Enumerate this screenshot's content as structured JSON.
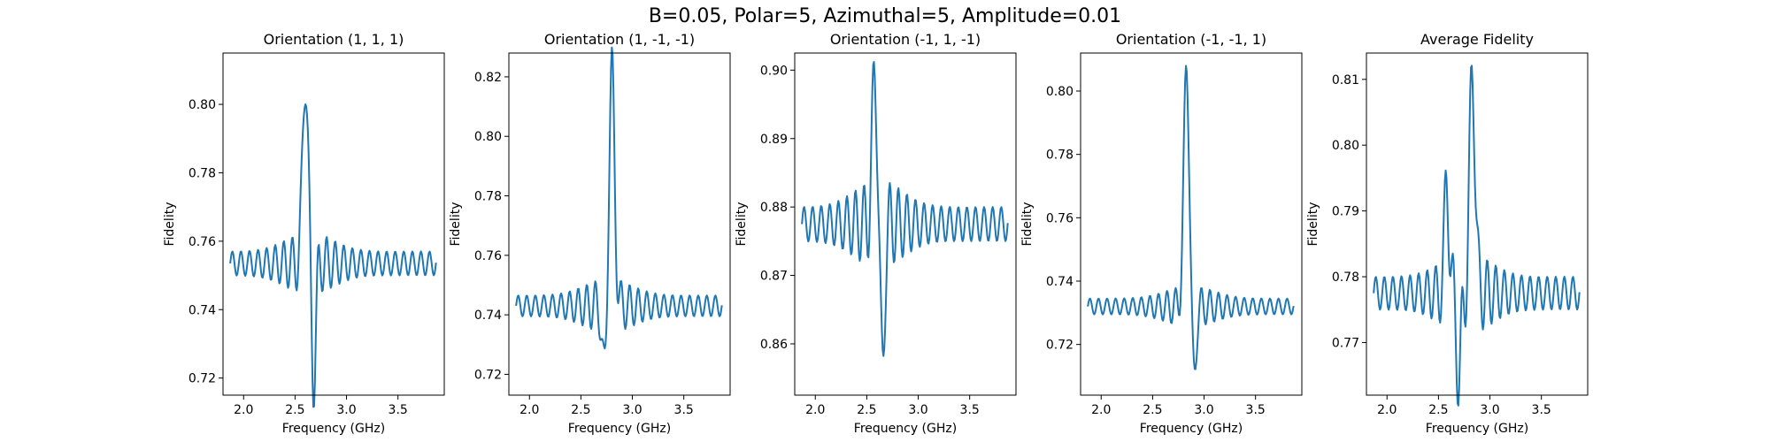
{
  "figure": {
    "suptitle": "B=0.05, Polar=5, Azimuthal=5, Amplitude=0.01",
    "line_color": "#1f77b4"
  },
  "chart_data": [
    {
      "type": "line",
      "title": "Orientation (1, 1, 1)",
      "xlabel": "Frequency (GHz)",
      "ylabel": "Fidelity",
      "xlim": [
        1.8,
        3.95
      ],
      "ylim": [
        0.715,
        0.815
      ],
      "xticks": [
        2.0,
        2.5,
        3.0,
        3.5
      ],
      "yticks": [
        0.72,
        0.74,
        0.76,
        0.78,
        0.8
      ],
      "curve": {
        "x_start": 1.87,
        "x_end": 3.87,
        "baseline": 0.7535,
        "osc_amp": 0.0035,
        "period": 0.0833,
        "peak_x": 2.6,
        "peak_y": 0.809,
        "dip_x": 2.68,
        "dip_y": 0.719
      }
    },
    {
      "type": "line",
      "title": "Orientation (1, -1, -1)",
      "xlabel": "Frequency (GHz)",
      "ylabel": "Fidelity",
      "xlim": [
        1.8,
        3.95
      ],
      "ylim": [
        0.713,
        0.828
      ],
      "xticks": [
        2.0,
        2.5,
        3.0,
        3.5
      ],
      "yticks": [
        0.72,
        0.74,
        0.76,
        0.78,
        0.8,
        0.82
      ],
      "curve": {
        "x_start": 1.87,
        "x_end": 3.87,
        "baseline": 0.743,
        "osc_amp": 0.0035,
        "period": 0.0833,
        "peak_x": 2.8,
        "peak_y": 0.822,
        "dip_x": 2.73,
        "dip_y": 0.718
      }
    },
    {
      "type": "line",
      "title": "Orientation (-1, 1, -1)",
      "xlabel": "Frequency (GHz)",
      "ylabel": "Fidelity",
      "xlim": [
        1.8,
        3.95
      ],
      "ylim": [
        0.8525,
        0.9025
      ],
      "xticks": [
        2.0,
        2.5,
        3.0,
        3.5
      ],
      "yticks": [
        0.86,
        0.87,
        0.88,
        0.89,
        0.9
      ],
      "curve": {
        "x_start": 1.87,
        "x_end": 3.87,
        "baseline": 0.8775,
        "osc_amp": 0.0025,
        "period": 0.0833,
        "peak_x": 2.58,
        "peak_y": 0.899,
        "dip_x": 2.65,
        "dip_y": 0.855
      }
    },
    {
      "type": "line",
      "title": "Orientation (-1, -1, 1)",
      "xlabel": "Frequency (GHz)",
      "ylabel": "Fidelity",
      "xlim": [
        1.8,
        3.95
      ],
      "ylim": [
        0.704,
        0.812
      ],
      "xticks": [
        2.0,
        2.5,
        3.0,
        3.5
      ],
      "yticks": [
        0.72,
        0.74,
        0.76,
        0.78,
        0.8
      ],
      "curve": {
        "x_start": 1.87,
        "x_end": 3.87,
        "baseline": 0.732,
        "osc_amp": 0.0025,
        "period": 0.0833,
        "peak_x": 2.83,
        "peak_y": 0.808,
        "dip_x": 2.9,
        "dip_y": 0.708
      }
    },
    {
      "type": "line",
      "title": "Average Fidelity",
      "xlabel": "Frequency (GHz)",
      "ylabel": "Fidelity",
      "xlim": [
        1.8,
        3.95
      ],
      "ylim": [
        0.762,
        0.814
      ],
      "xticks": [
        2.0,
        2.5,
        3.0,
        3.5
      ],
      "yticks": [
        0.77,
        0.78,
        0.79,
        0.8,
        0.81
      ],
      "curve": {
        "x_start": 1.87,
        "x_end": 3.87,
        "baseline": 0.7775,
        "osc_amp": 0.0025,
        "period": 0.0833,
        "peak_x": 2.83,
        "peak_y": 0.811,
        "dip_x": 2.7,
        "dip_y": 0.764,
        "peak2_x": 2.58,
        "peak2_y": 0.795
      }
    }
  ]
}
